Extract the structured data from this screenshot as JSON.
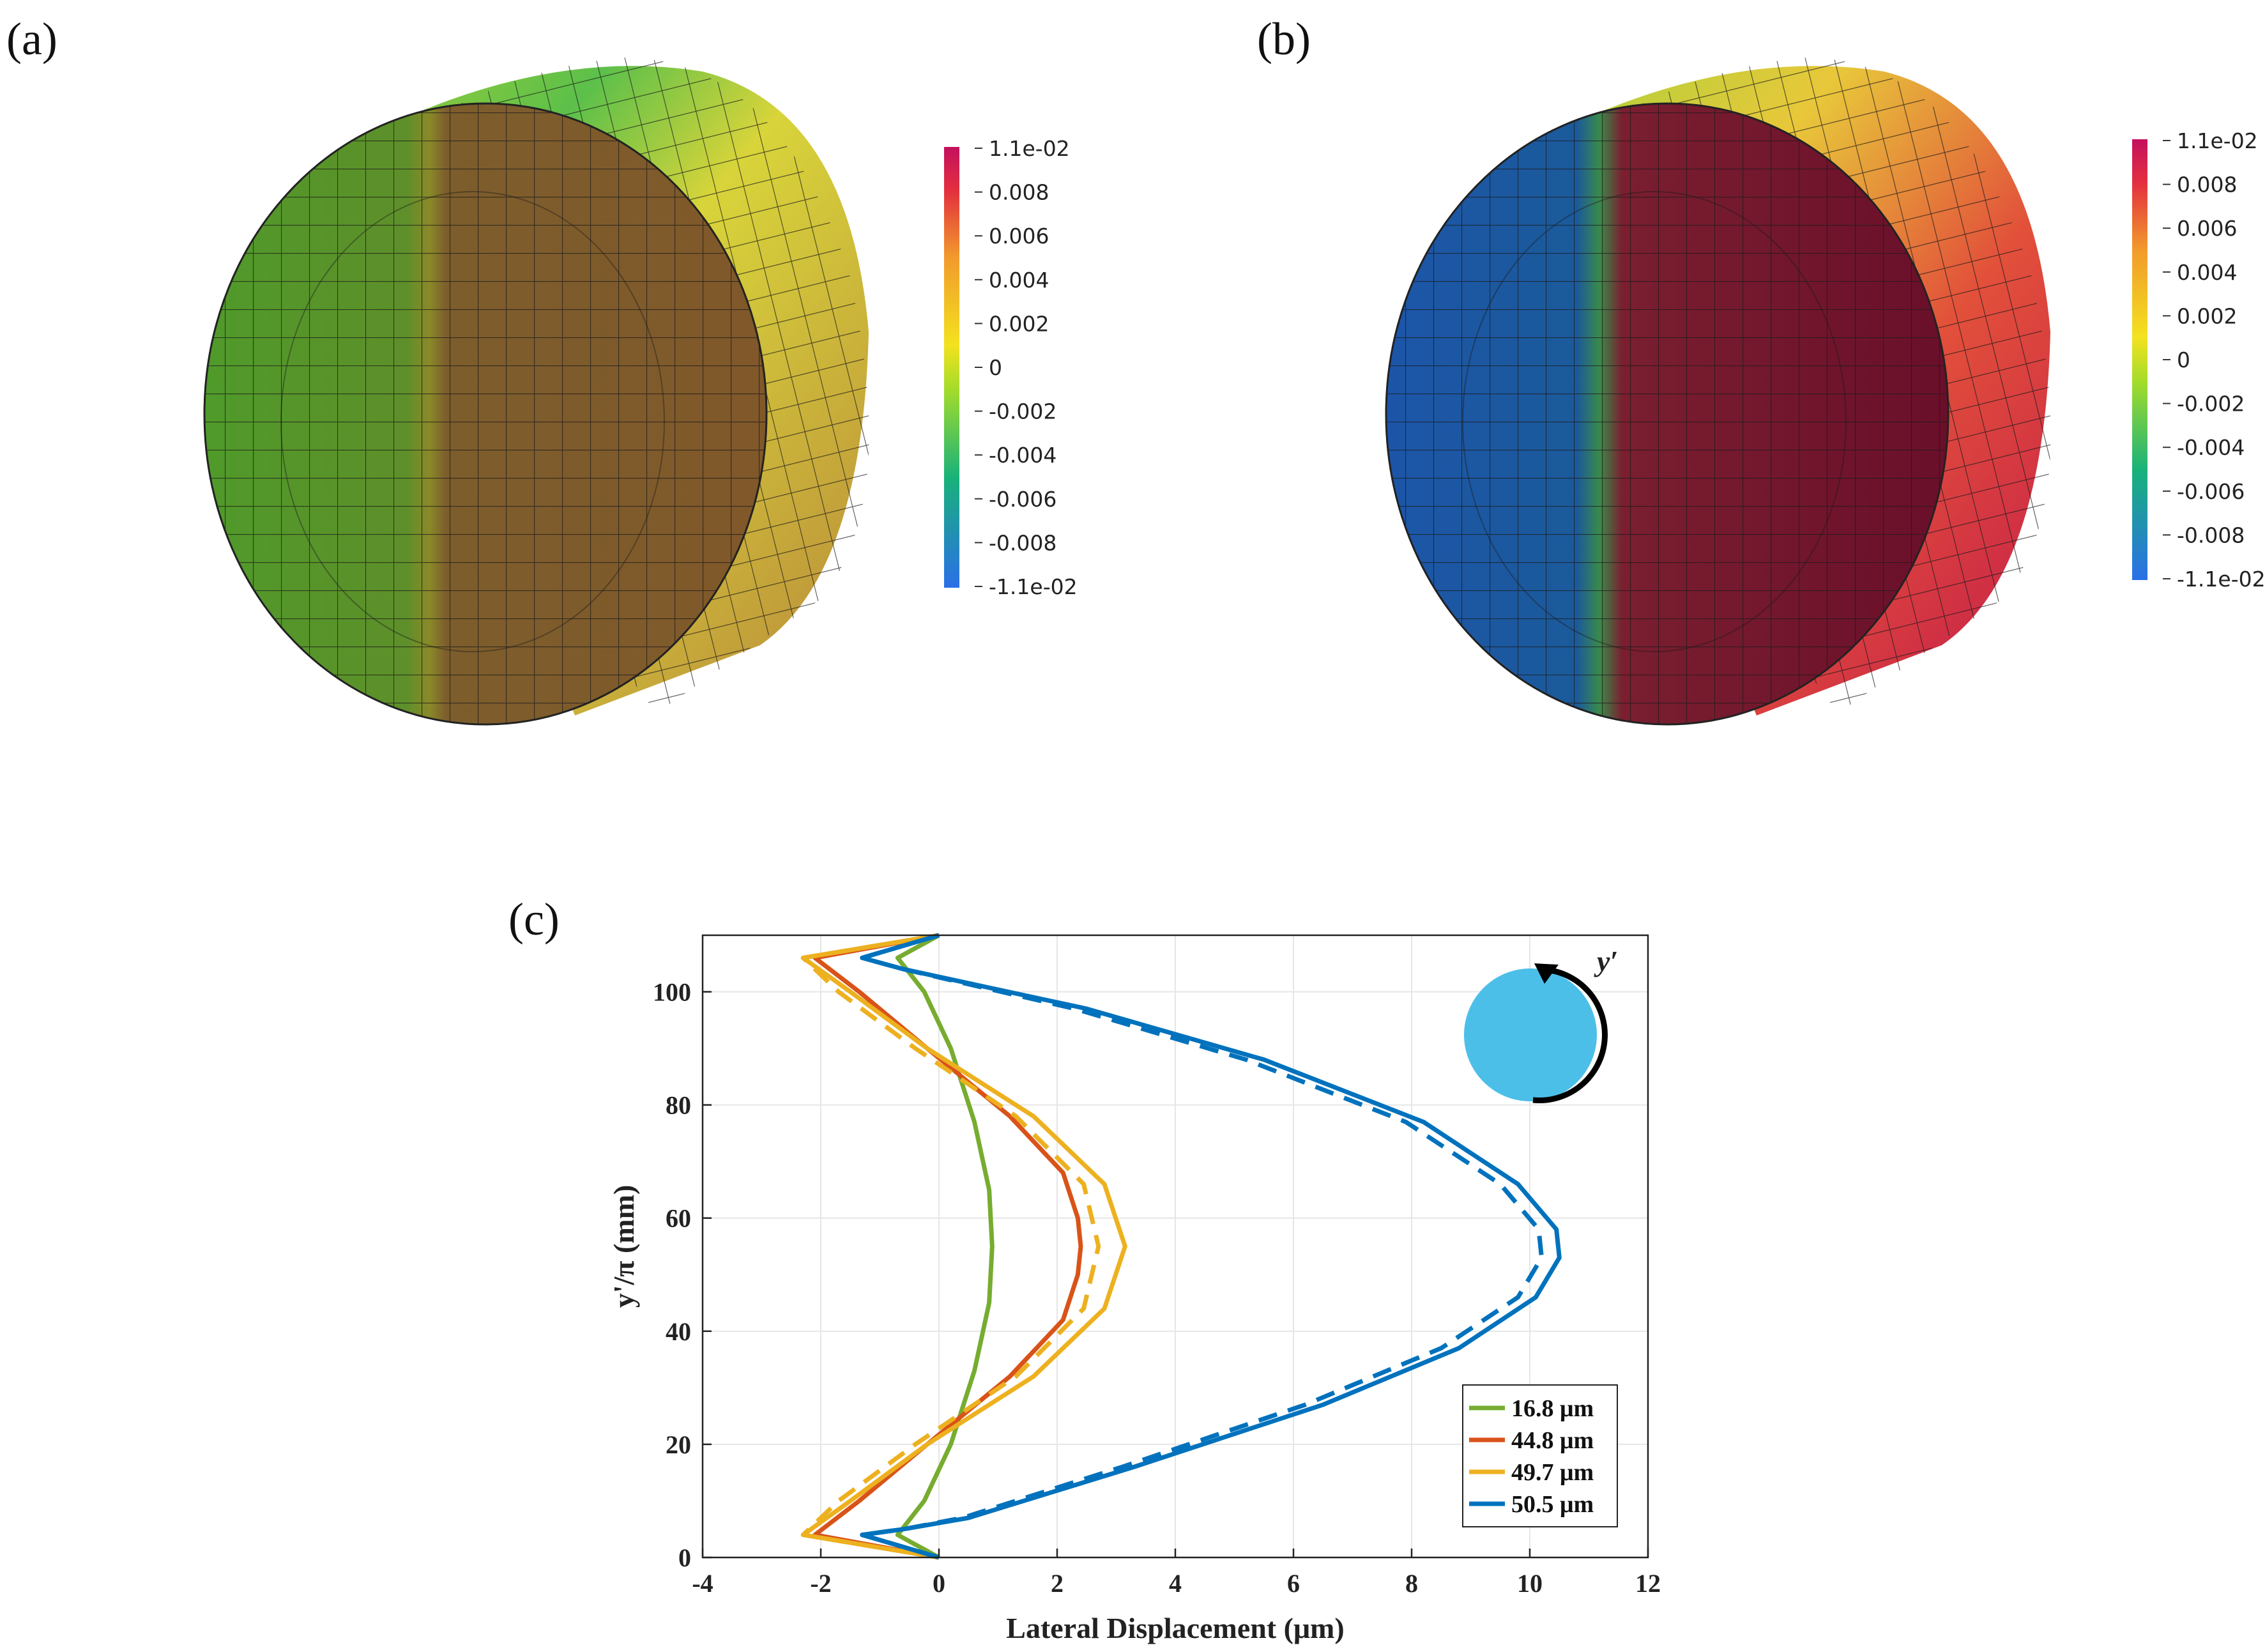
{
  "panels": {
    "a": "(a)",
    "b": "(b)",
    "c": "(c)"
  },
  "colorbar_ticks": [
    "1.1e-02",
    "0.008",
    "0.006",
    "0.004",
    "0.002",
    "0",
    "-0.002",
    "-0.004",
    "-0.006",
    "-0.008",
    "-1.1e-02"
  ],
  "chart_data": {
    "type": "line",
    "title": "",
    "xlabel": "Lateral Displacement (μm)",
    "ylabel": "y'/π (mm)",
    "xlim": [
      -4,
      12
    ],
    "ylim": [
      0,
      110
    ],
    "xticks": [
      -4,
      -2,
      0,
      2,
      4,
      6,
      8,
      10,
      12
    ],
    "yticks": [
      0,
      20,
      40,
      60,
      80,
      100
    ],
    "grid": true,
    "legend_position": "bottom-right",
    "inset_label": "y′",
    "series": [
      {
        "name": "16.8 μm",
        "color": "#77AC30",
        "solid": [
          [
            0,
            110
          ],
          [
            -0.7,
            106
          ],
          [
            -0.25,
            100
          ],
          [
            0.2,
            90
          ],
          [
            0.6,
            77
          ],
          [
            0.85,
            65
          ],
          [
            0.9,
            55
          ],
          [
            0.85,
            45
          ],
          [
            0.6,
            33
          ],
          [
            0.2,
            20
          ],
          [
            -0.25,
            10
          ],
          [
            -0.7,
            4
          ],
          [
            0,
            0
          ]
        ]
      },
      {
        "name": "44.8 μm",
        "color": "#D95319",
        "solid": [
          [
            0,
            110
          ],
          [
            -2.1,
            106
          ],
          [
            -1.35,
            100
          ],
          [
            -0.2,
            90
          ],
          [
            1.2,
            78
          ],
          [
            2.1,
            68
          ],
          [
            2.35,
            60
          ],
          [
            2.4,
            55
          ],
          [
            2.35,
            50
          ],
          [
            2.1,
            42
          ],
          [
            1.2,
            32
          ],
          [
            -0.2,
            20
          ],
          [
            -1.35,
            10
          ],
          [
            -2.1,
            4
          ],
          [
            0,
            0
          ]
        ]
      },
      {
        "name": "49.7 μm",
        "color": "#EDB120",
        "solid": [
          [
            0,
            110
          ],
          [
            -2.3,
            106
          ],
          [
            -1.5,
            100
          ],
          [
            -0.2,
            90
          ],
          [
            1.6,
            78
          ],
          [
            2.8,
            66
          ],
          [
            3.15,
            55
          ],
          [
            2.8,
            44
          ],
          [
            1.6,
            32
          ],
          [
            -0.2,
            20
          ],
          [
            -1.5,
            10
          ],
          [
            -2.3,
            4
          ],
          [
            0,
            0
          ]
        ],
        "dashed": [
          [
            0,
            110
          ],
          [
            -2.3,
            106
          ],
          [
            -1.7,
            100
          ],
          [
            -0.4,
            90
          ],
          [
            1.3,
            78
          ],
          [
            2.45,
            66
          ],
          [
            2.7,
            55
          ],
          [
            2.45,
            44
          ],
          [
            1.3,
            32
          ],
          [
            -0.4,
            20
          ],
          [
            -1.7,
            10
          ],
          [
            -2.3,
            4
          ],
          [
            0,
            0
          ]
        ]
      },
      {
        "name": "50.5 μm",
        "color": "#0072BD",
        "solid": [
          [
            0,
            110
          ],
          [
            -1.3,
            106
          ],
          [
            -0.6,
            104
          ],
          [
            2.5,
            97
          ],
          [
            5.5,
            88
          ],
          [
            8.2,
            77
          ],
          [
            9.8,
            66
          ],
          [
            10.45,
            58
          ],
          [
            10.5,
            53
          ],
          [
            10.1,
            46
          ],
          [
            8.8,
            37
          ],
          [
            6.5,
            27
          ],
          [
            3.3,
            16
          ],
          [
            0.5,
            7
          ],
          [
            -0.6,
            5
          ],
          [
            -1.3,
            4
          ],
          [
            0,
            0
          ]
        ],
        "dashed": [
          [
            0,
            110
          ],
          [
            -1.3,
            106
          ],
          [
            -0.6,
            104
          ],
          [
            2.3,
            97
          ],
          [
            5.2,
            88
          ],
          [
            7.9,
            77
          ],
          [
            9.5,
            66
          ],
          [
            10.15,
            58
          ],
          [
            10.2,
            53
          ],
          [
            9.8,
            46
          ],
          [
            8.5,
            37
          ],
          [
            6.2,
            27
          ],
          [
            3.1,
            16
          ],
          [
            0.4,
            7
          ],
          [
            -0.6,
            5
          ],
          [
            -1.3,
            4
          ],
          [
            0,
            0
          ]
        ]
      }
    ]
  }
}
